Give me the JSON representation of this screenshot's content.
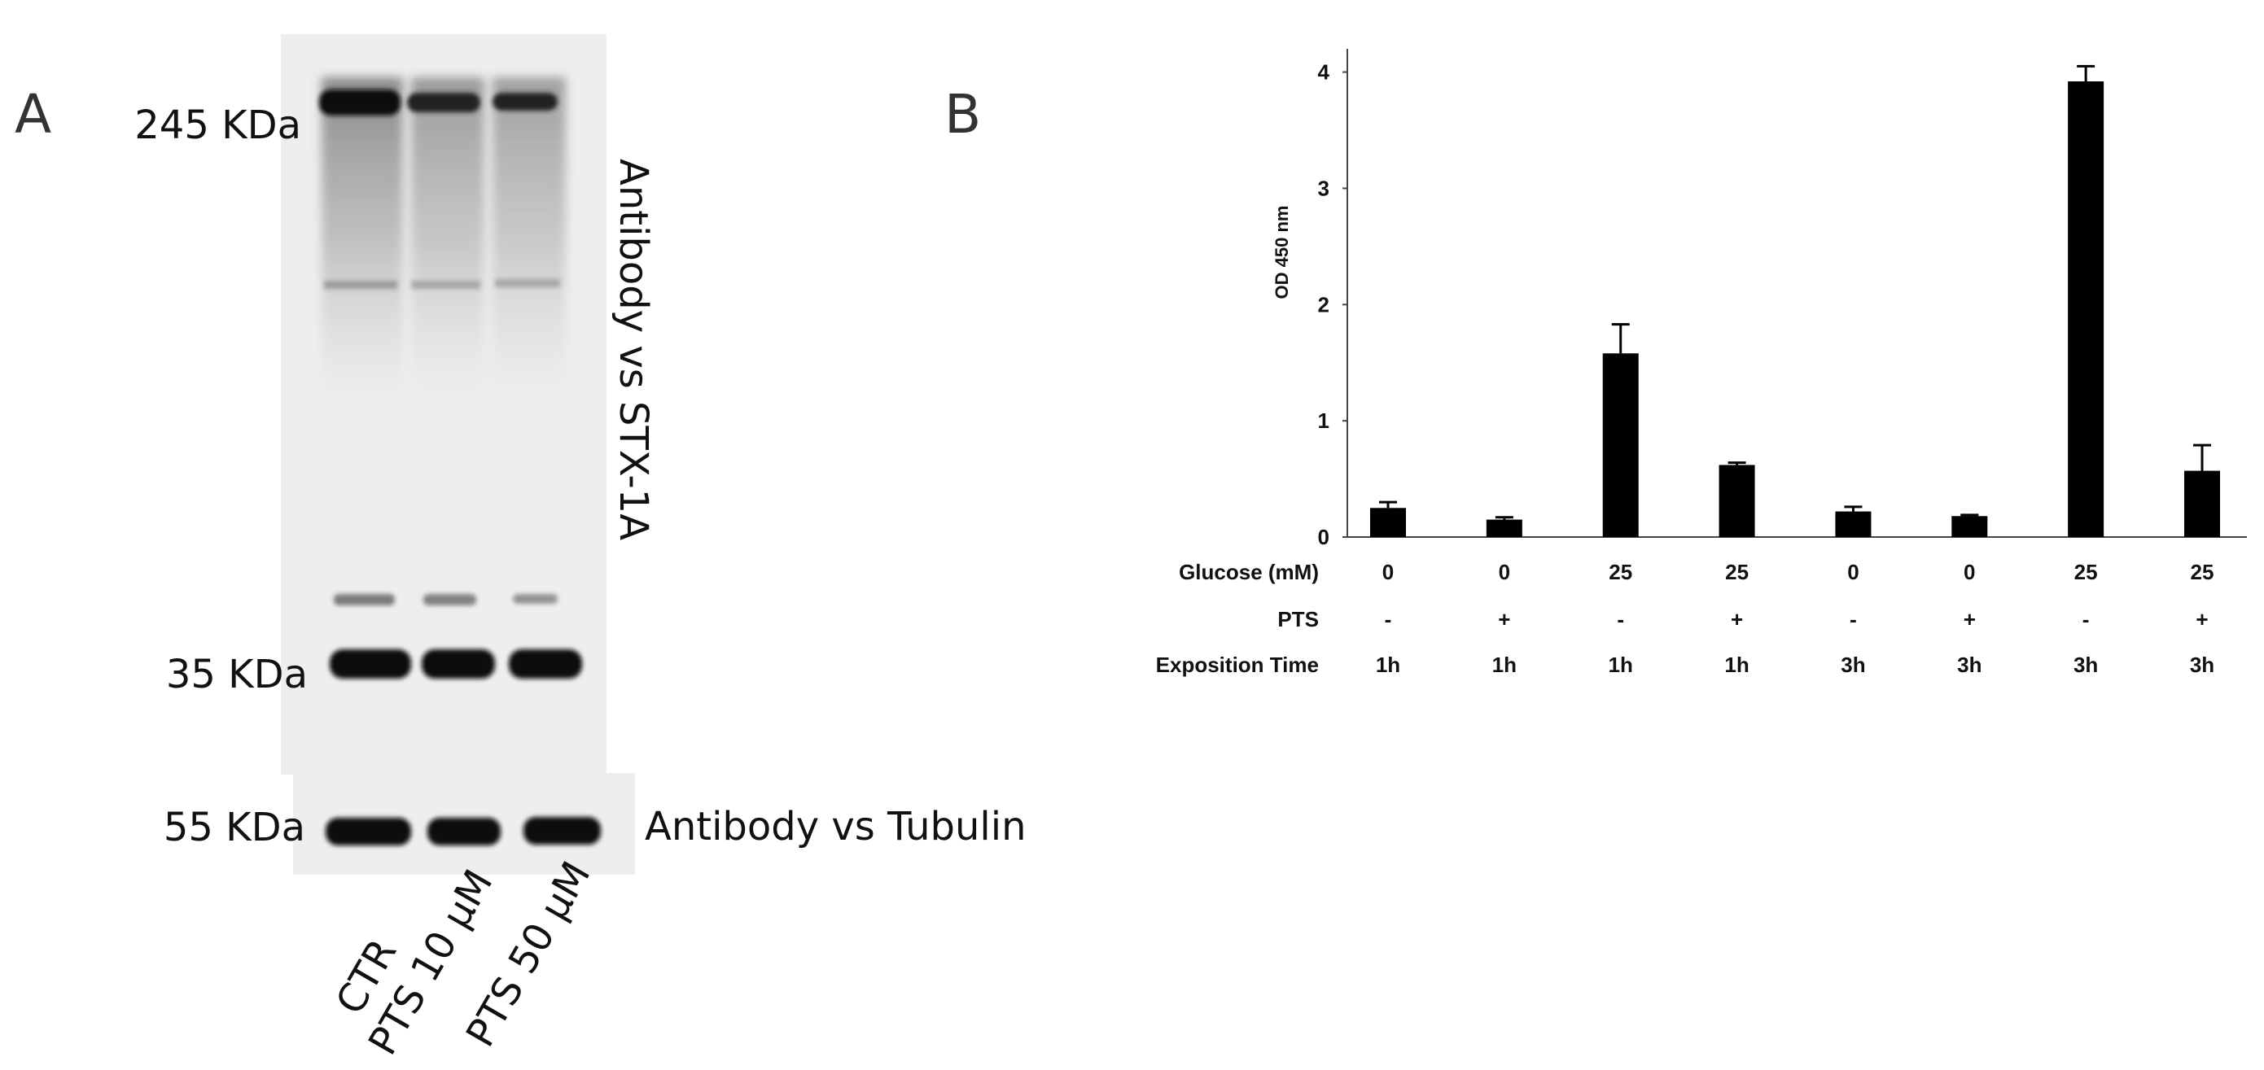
{
  "panel_a": {
    "letter": "A",
    "mw_markers": [
      "245 KDa",
      "35 KDa",
      "55 KDa"
    ],
    "antibody_labels": [
      "Antibody  vs STX-1A",
      "Antibody  vs Tubulin"
    ],
    "lanes": [
      "CTR",
      "PTS 10 μM",
      "PTS 50 μM"
    ]
  },
  "panel_b": {
    "letter": "B"
  },
  "chart_data": {
    "type": "bar",
    "ylabel": "OD 450 nm",
    "ylim": [
      0,
      4.2
    ],
    "yticks": [
      0,
      1,
      2,
      3,
      4
    ],
    "bar_color": "#000000",
    "values": [
      0.25,
      0.15,
      1.58,
      0.62,
      0.22,
      0.18,
      3.92,
      0.57
    ],
    "errors": [
      0.05,
      0.02,
      0.25,
      0.02,
      0.04,
      0.01,
      0.13,
      0.22
    ],
    "condition_rows": [
      {
        "label": "Glucose (mM)",
        "values": [
          "0",
          "0",
          "25",
          "25",
          "0",
          "0",
          "25",
          "25"
        ]
      },
      {
        "label": "PTS",
        "values": [
          "-",
          "+",
          "-",
          "+",
          "-",
          "+",
          "-",
          "+"
        ]
      },
      {
        "label": "Exposition Time",
        "values": [
          "1h",
          "1h",
          "1h",
          "1h",
          "3h",
          "3h",
          "3h",
          "3h"
        ]
      }
    ]
  }
}
